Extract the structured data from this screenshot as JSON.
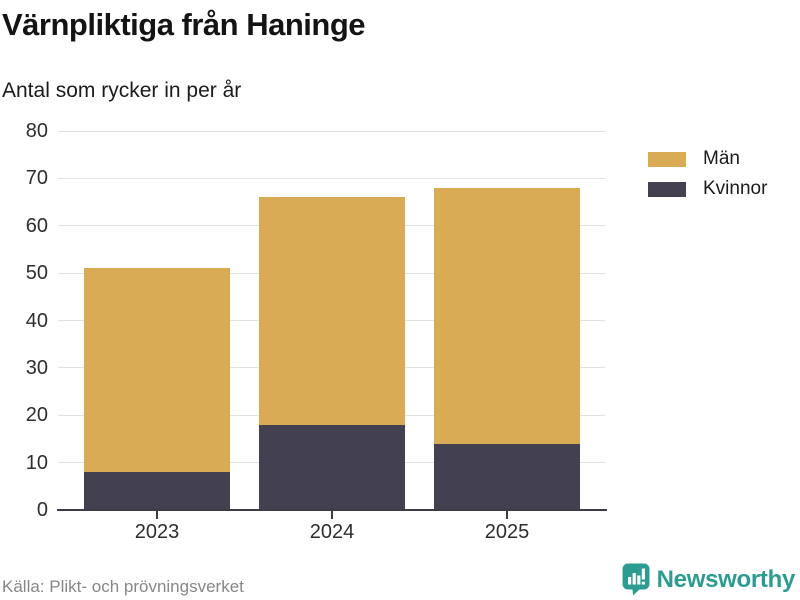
{
  "header": {
    "title": "Värnpliktiga från Haninge",
    "subtitle": "Antal som rycker in per år"
  },
  "chart_data": {
    "type": "bar",
    "stacked": true,
    "title": "Värnpliktiga från Haninge",
    "subtitle": "Antal som rycker in per år",
    "categories": [
      "2023",
      "2024",
      "2025"
    ],
    "series": [
      {
        "name": "Kvinnor",
        "color": "#434050",
        "values": [
          8,
          18,
          14
        ]
      },
      {
        "name": "Män",
        "color": "#d9ab55",
        "values": [
          43,
          48,
          54
        ]
      }
    ],
    "stack_totals": [
      51,
      66,
      68
    ],
    "ylim": [
      0,
      80
    ],
    "yticks": [
      0,
      10,
      20,
      30,
      40,
      50,
      60,
      70,
      80
    ],
    "grid": true,
    "legend_position": "right"
  },
  "legend": {
    "items": [
      {
        "label": "Män",
        "color": "#d9ab55"
      },
      {
        "label": "Kvinnor",
        "color": "#434050"
      }
    ]
  },
  "footer": {
    "source": "Källa: Plikt- och prövningsverket",
    "brand": "Newsworthy"
  },
  "colors": {
    "men": "#d9ab55",
    "women": "#434050",
    "gridline": "#e2e2e2",
    "axis": "#3d3b48",
    "brand_teal": "#2c9c92",
    "text_dark": "#141414",
    "text_muted": "#878787"
  }
}
